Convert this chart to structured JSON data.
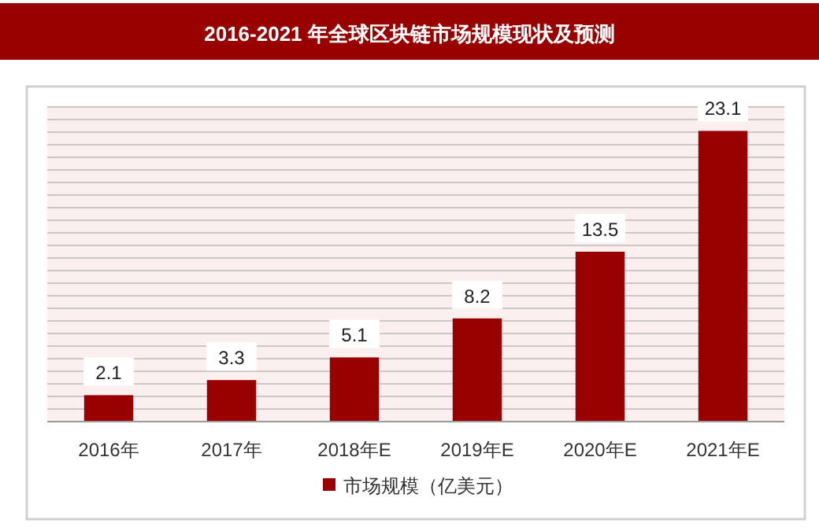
{
  "chart_data": {
    "type": "bar",
    "title": "2016-2021 年全球区块链市场规模现状及预测",
    "categories": [
      "2016年",
      "2017年",
      "2018年E",
      "2019年E",
      "2020年E",
      "2021年E"
    ],
    "series": [
      {
        "name": "市场规模（亿美元）",
        "color": "#990000",
        "values": [
          2.1,
          3.3,
          5.1,
          8.2,
          13.5,
          23.1
        ]
      }
    ],
    "ylim": [
      0,
      25
    ],
    "yticks": [
      {
        "value": 0,
        "label": null
      },
      {
        "value": 1,
        "label": null
      },
      {
        "value": 2,
        "label": null
      },
      {
        "value": 3,
        "label": null
      },
      {
        "value": 4,
        "label": null
      },
      {
        "value": 5,
        "label": null
      },
      {
        "value": 6,
        "label": null
      },
      {
        "value": 7,
        "label": null
      },
      {
        "value": 8,
        "label": null
      },
      {
        "value": 9,
        "label": null
      },
      {
        "value": 10,
        "label": null
      },
      {
        "value": 11,
        "label": null
      },
      {
        "value": 12,
        "label": null
      },
      {
        "value": 13,
        "label": null
      },
      {
        "value": 14,
        "label": null
      },
      {
        "value": 15,
        "label": null
      },
      {
        "value": 16,
        "label": null
      },
      {
        "value": 17,
        "label": null
      },
      {
        "value": 18,
        "label": null
      },
      {
        "value": 19,
        "label": null
      },
      {
        "value": 20,
        "label": null
      },
      {
        "value": 21,
        "label": null
      },
      {
        "value": 22,
        "label": null
      },
      {
        "value": 23,
        "label": null
      },
      {
        "value": 24,
        "label": null
      },
      {
        "value": 25,
        "label": null
      }
    ],
    "tick_labels": "x",
    "grid": "y",
    "data_labels": true,
    "legend": "bottom"
  }
}
